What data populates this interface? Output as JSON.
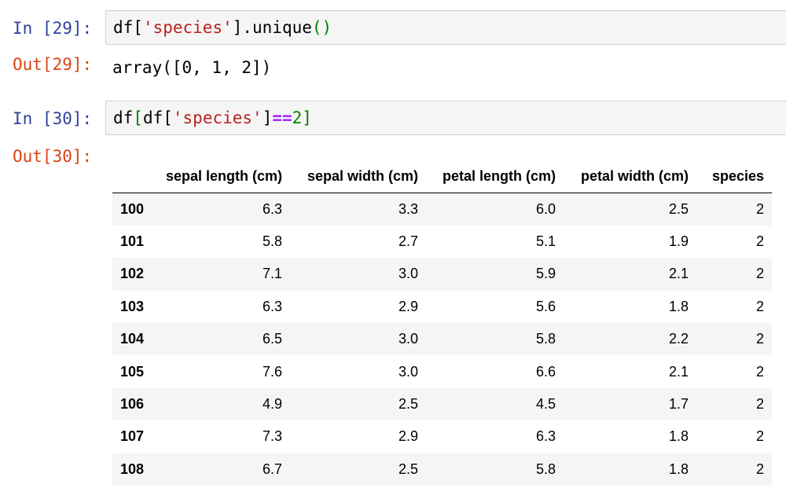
{
  "cells": [
    {
      "in_prompt": "In [29]:",
      "code_tokens": [
        "df[",
        "'species'",
        "].unique",
        "()"
      ],
      "out_prompt": "Out[29]:",
      "output_text": "array([0, 1, 2])"
    },
    {
      "in_prompt": "In [30]:",
      "code_tokens": [
        "df",
        "[",
        "df[",
        "'species'",
        "]",
        "==",
        "2",
        "]"
      ],
      "out_prompt": "Out[30]:"
    }
  ],
  "dataframe": {
    "columns": [
      "sepal length (cm)",
      "sepal width (cm)",
      "petal length (cm)",
      "petal width (cm)",
      "species"
    ],
    "rows": [
      {
        "index": "100",
        "values": [
          "6.3",
          "3.3",
          "6.0",
          "2.5",
          "2"
        ]
      },
      {
        "index": "101",
        "values": [
          "5.8",
          "2.7",
          "5.1",
          "1.9",
          "2"
        ]
      },
      {
        "index": "102",
        "values": [
          "7.1",
          "3.0",
          "5.9",
          "2.1",
          "2"
        ]
      },
      {
        "index": "103",
        "values": [
          "6.3",
          "2.9",
          "5.6",
          "1.8",
          "2"
        ]
      },
      {
        "index": "104",
        "values": [
          "6.5",
          "3.0",
          "5.8",
          "2.2",
          "2"
        ]
      },
      {
        "index": "105",
        "values": [
          "7.6",
          "3.0",
          "6.6",
          "2.1",
          "2"
        ]
      },
      {
        "index": "106",
        "values": [
          "4.9",
          "2.5",
          "4.5",
          "1.7",
          "2"
        ]
      },
      {
        "index": "107",
        "values": [
          "7.3",
          "2.9",
          "6.3",
          "1.8",
          "2"
        ]
      },
      {
        "index": "108",
        "values": [
          "6.7",
          "2.5",
          "5.8",
          "1.8",
          "2"
        ]
      }
    ]
  },
  "colors": {
    "in_prompt": "#303f9f",
    "out_prompt": "#d84315",
    "string": "#ba2121",
    "number": "#008000",
    "operator": "#aa22ff",
    "input_background": "#f5f5f5",
    "striped_row": "#f5f5f5"
  }
}
